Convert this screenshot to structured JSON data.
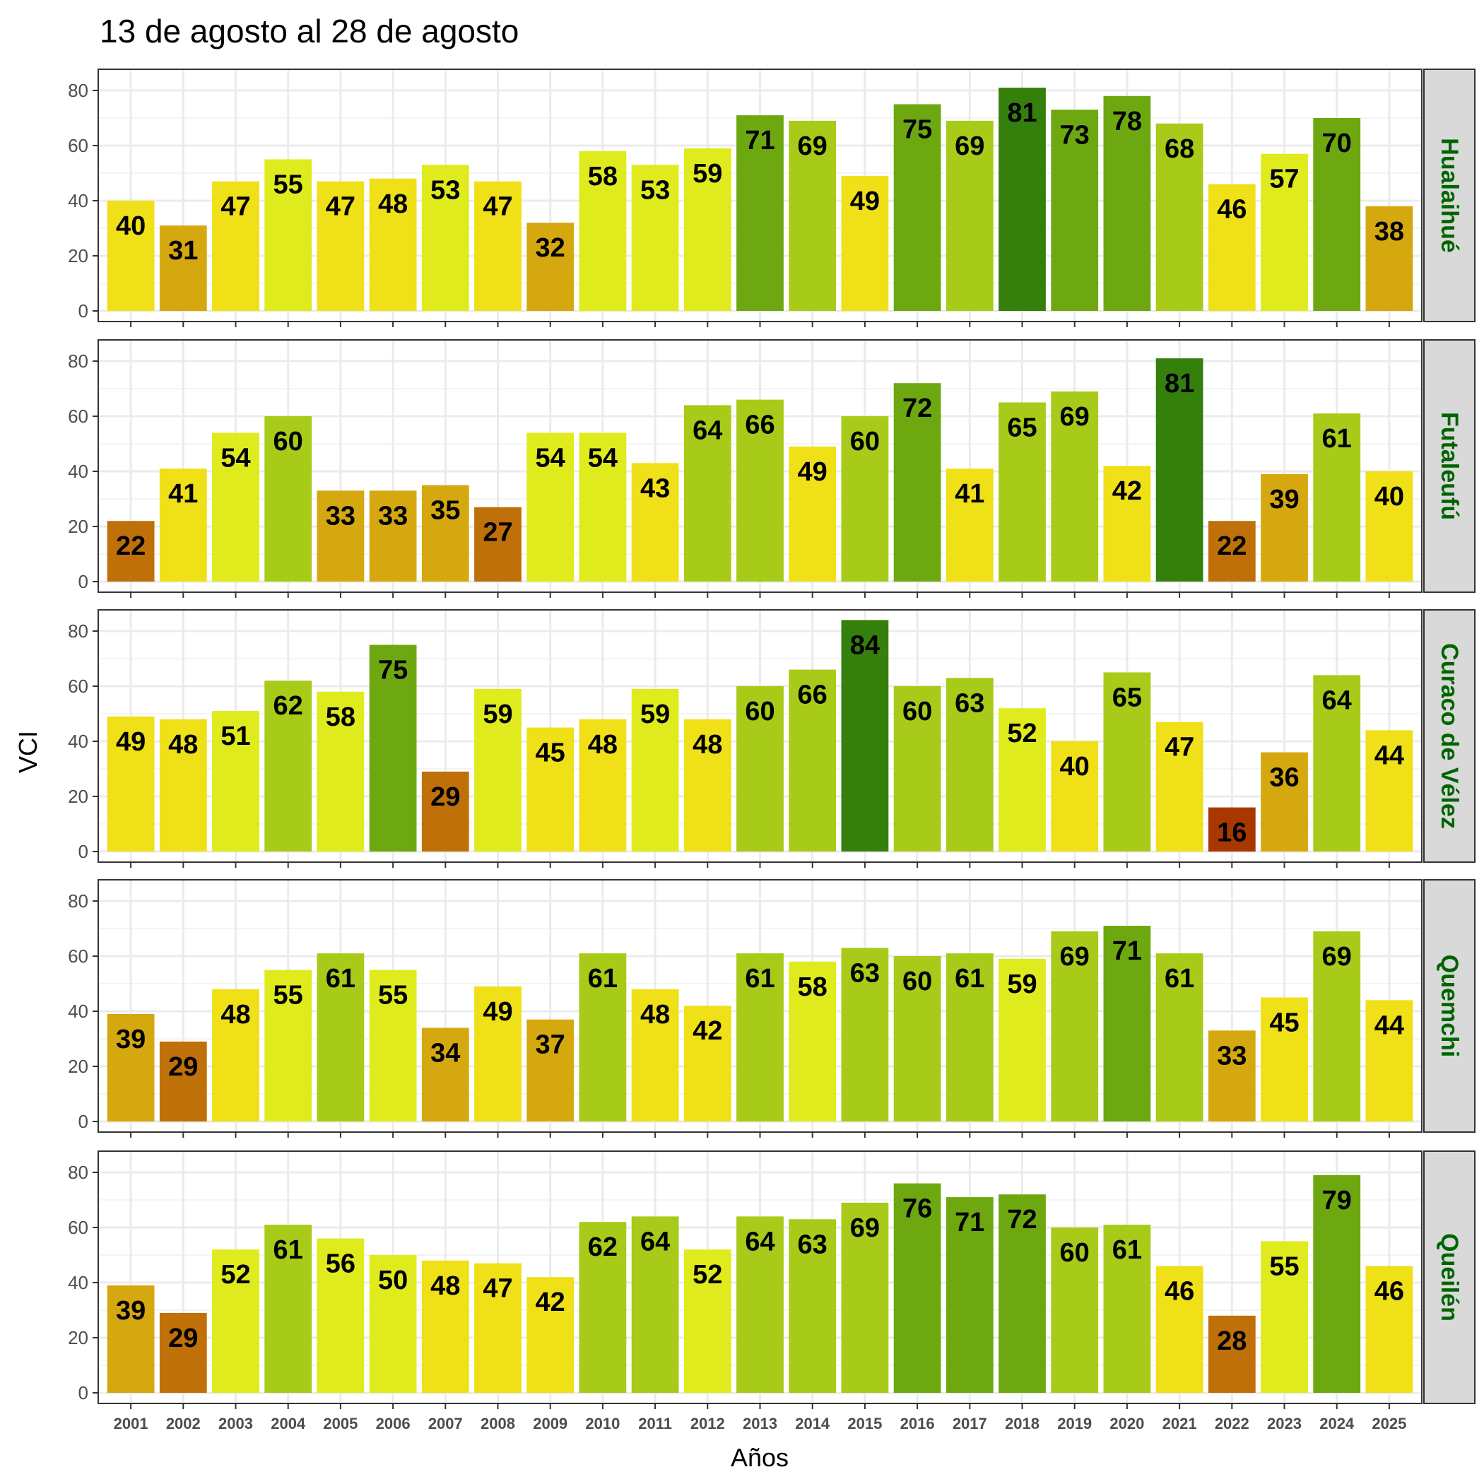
{
  "chart_data": {
    "type": "bar",
    "title": "13 de agosto al 28 de agosto",
    "xlabel": "Años",
    "ylabel": "VCI",
    "ylim": [
      0,
      88
    ],
    "yticks": [
      0,
      20,
      40,
      60,
      80
    ],
    "grid": true,
    "categories": [
      "2001",
      "2002",
      "2003",
      "2004",
      "2005",
      "2006",
      "2007",
      "2008",
      "2009",
      "2010",
      "2011",
      "2012",
      "2013",
      "2014",
      "2015",
      "2016",
      "2017",
      "2018",
      "2019",
      "2020",
      "2021",
      "2022",
      "2023",
      "2024",
      "2025"
    ],
    "color_scale": [
      {
        "max": 20,
        "color": "#a83800"
      },
      {
        "max": 30,
        "color": "#c07008"
      },
      {
        "max": 40,
        "color": "#d6a810"
      },
      {
        "max": 50,
        "color": "#efe018"
      },
      {
        "max": 60,
        "color": "#dfeb1c"
      },
      {
        "max": 70,
        "color": "#a8ca18"
      },
      {
        "max": 80,
        "color": "#6ea810"
      },
      {
        "max": 100,
        "color": "#35800c"
      }
    ],
    "series": [
      {
        "name": "Hualaihué",
        "values": [
          40,
          31,
          47,
          55,
          47,
          48,
          53,
          47,
          32,
          58,
          53,
          59,
          71,
          69,
          49,
          75,
          69,
          81,
          73,
          78,
          68,
          46,
          57,
          70,
          38
        ]
      },
      {
        "name": "Futaleufú",
        "values": [
          22,
          41,
          54,
          60,
          33,
          33,
          35,
          27,
          54,
          54,
          43,
          64,
          66,
          49,
          60,
          72,
          41,
          65,
          69,
          42,
          81,
          22,
          39,
          61,
          40
        ]
      },
      {
        "name": "Curaco de Vélez",
        "values": [
          49,
          48,
          51,
          62,
          58,
          75,
          29,
          59,
          45,
          48,
          59,
          48,
          60,
          66,
          84,
          60,
          63,
          52,
          40,
          65,
          47,
          16,
          36,
          64,
          44
        ]
      },
      {
        "name": "Quemchi",
        "values": [
          39,
          29,
          48,
          55,
          61,
          55,
          34,
          49,
          37,
          61,
          48,
          42,
          61,
          58,
          63,
          60,
          61,
          59,
          69,
          71,
          61,
          33,
          45,
          69,
          44
        ]
      },
      {
        "name": "Queilén",
        "values": [
          39,
          29,
          52,
          61,
          56,
          50,
          48,
          47,
          42,
          62,
          64,
          52,
          64,
          63,
          69,
          76,
          71,
          72,
          60,
          61,
          46,
          28,
          55,
          79,
          46
        ]
      }
    ],
    "strip_text_color": "#006400",
    "strip_bg_color": "#d9d9d9"
  }
}
